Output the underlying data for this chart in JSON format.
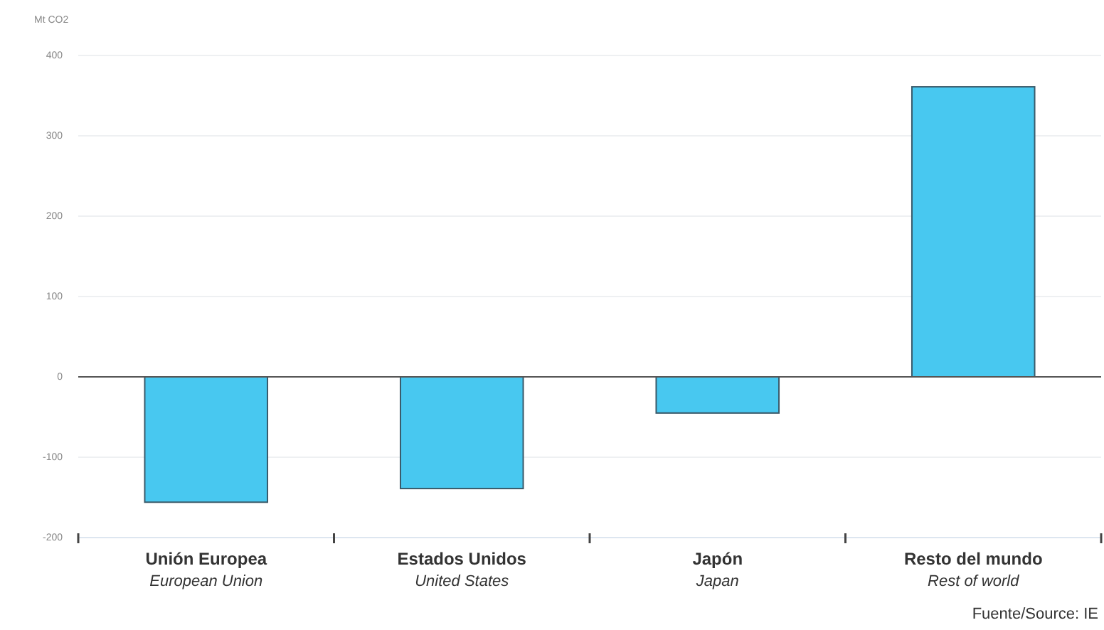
{
  "chart_data": {
    "type": "bar",
    "ylabel": "Mt CO2",
    "categories": [
      "Unión Europea\nEuropean Union",
      "Estados Unidos\nUnited States",
      "Japón\nJapan",
      "Resto del mundo\nRest of world"
    ],
    "values": [
      -156,
      -139,
      -45,
      361
    ],
    "color": "#48c8f0",
    "ylim": [
      -200,
      400
    ],
    "yticks": [
      -200,
      -100,
      0,
      100,
      200,
      300,
      400
    ],
    "grid": "y",
    "annotations": [
      "Fuente/Source: IE"
    ]
  }
}
